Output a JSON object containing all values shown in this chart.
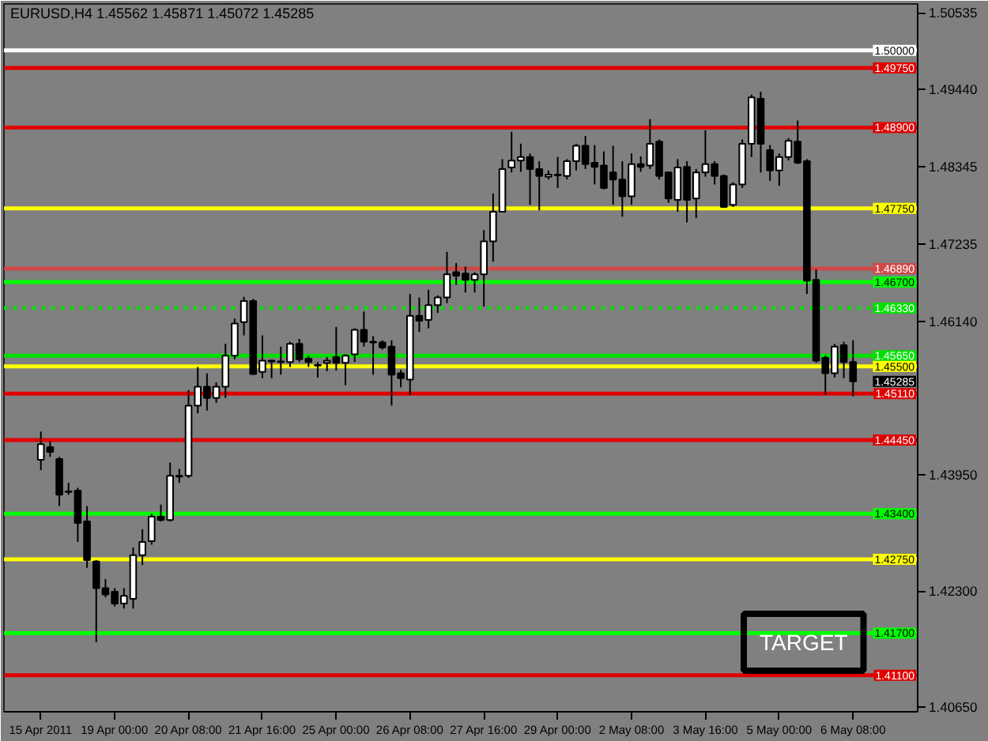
{
  "chart_data": {
    "type": "candlestick",
    "title": "EURUSD,H4 1.45562 1.45871 1.45072 1.45285",
    "categories": [
      "15 Apr 2011",
      null,
      null,
      null,
      null,
      null,
      null,
      null,
      "19 Apr 00:00",
      null,
      null,
      null,
      null,
      null,
      null,
      null,
      "20 Apr 08:00",
      null,
      null,
      null,
      null,
      null,
      null,
      null,
      "21 Apr 16:00",
      null,
      null,
      null,
      null,
      null,
      null,
      null,
      "25 Apr 00:00",
      null,
      null,
      null,
      null,
      null,
      null,
      null,
      "26 Apr 08:00",
      null,
      null,
      null,
      null,
      null,
      null,
      null,
      "27 Apr 16:00",
      null,
      null,
      null,
      null,
      null,
      null,
      null,
      "29 Apr 00:00",
      null,
      null,
      null,
      null,
      null,
      null,
      null,
      "2 May 08:00",
      null,
      null,
      null,
      null,
      null,
      null,
      null,
      "3 May 16:00",
      null,
      null,
      null,
      null,
      null,
      null,
      null,
      "5 May 00:00",
      null,
      null,
      null,
      null,
      null,
      null,
      null,
      "6 May 08:00"
    ],
    "ohlc": [
      [
        1.4417,
        1.4457,
        1.4402,
        1.4439
      ],
      [
        1.4435,
        1.4443,
        1.4421,
        1.4428
      ],
      [
        1.4418,
        1.4421,
        1.4351,
        1.4367
      ],
      [
        1.4372,
        1.4384,
        1.4367,
        1.4371
      ],
      [
        1.4373,
        1.4377,
        1.43,
        1.4327
      ],
      [
        1.4329,
        1.4351,
        1.4263,
        1.4274
      ],
      [
        1.4272,
        1.4274,
        1.4157,
        1.4234
      ],
      [
        1.4234,
        1.4247,
        1.4221,
        1.4225
      ],
      [
        1.4229,
        1.4234,
        1.4208,
        1.4212
      ],
      [
        1.4212,
        1.4234,
        1.4205,
        1.4223
      ],
      [
        1.4219,
        1.4292,
        1.4205,
        1.4281
      ],
      [
        1.4281,
        1.4318,
        1.4267,
        1.43
      ],
      [
        1.4301,
        1.434,
        1.4296,
        1.4336
      ],
      [
        1.4336,
        1.4353,
        1.4329,
        1.4331
      ],
      [
        1.4331,
        1.4413,
        1.4329,
        1.4394
      ],
      [
        1.4394,
        1.4404,
        1.4384,
        1.4393
      ],
      [
        1.4394,
        1.4516,
        1.4391,
        1.4494
      ],
      [
        1.4494,
        1.4549,
        1.4483,
        1.4521
      ],
      [
        1.4521,
        1.454,
        1.4487,
        1.4505
      ],
      [
        1.4505,
        1.4527,
        1.4498,
        1.4521
      ],
      [
        1.4521,
        1.4582,
        1.4505,
        1.4565
      ],
      [
        1.4565,
        1.4618,
        1.456,
        1.4611
      ],
      [
        1.4613,
        1.4649,
        1.4594,
        1.4643
      ],
      [
        1.4643,
        1.4646,
        1.4538,
        1.4539
      ],
      [
        1.4542,
        1.4594,
        1.4533,
        1.4558
      ],
      [
        1.4558,
        1.4559,
        1.4533,
        1.4557
      ],
      [
        1.4556,
        1.4578,
        1.4538,
        1.4557
      ],
      [
        1.4556,
        1.4585,
        1.4549,
        1.4582
      ],
      [
        1.4582,
        1.4589,
        1.4556,
        1.456
      ],
      [
        1.4561,
        1.4565,
        1.4549,
        1.4556
      ],
      [
        1.4552,
        1.4556,
        1.4534,
        1.4551
      ],
      [
        1.4555,
        1.4563,
        1.4543,
        1.4558
      ],
      [
        1.4563,
        1.4606,
        1.4544,
        1.4555
      ],
      [
        1.4555,
        1.4567,
        1.4523,
        1.4565
      ],
      [
        1.4567,
        1.4604,
        1.4556,
        1.4602
      ],
      [
        1.4602,
        1.4628,
        1.4578,
        1.4585
      ],
      [
        1.4585,
        1.4593,
        1.4538,
        1.4584
      ],
      [
        1.4584,
        1.4587,
        1.4574,
        1.4577
      ],
      [
        1.4578,
        1.4587,
        1.4494,
        1.4538
      ],
      [
        1.454,
        1.4545,
        1.452,
        1.4533
      ],
      [
        1.4531,
        1.4653,
        1.4509,
        1.4622
      ],
      [
        1.4622,
        1.4648,
        1.4599,
        1.4615
      ],
      [
        1.4616,
        1.4659,
        1.4604,
        1.4637
      ],
      [
        1.4637,
        1.4651,
        1.4626,
        1.4648
      ],
      [
        1.4648,
        1.4713,
        1.464,
        1.4681
      ],
      [
        1.4684,
        1.4697,
        1.4666,
        1.4679
      ],
      [
        1.4682,
        1.4692,
        1.4655,
        1.4673
      ],
      [
        1.4673,
        1.4684,
        1.4655,
        1.4681
      ],
      [
        1.4681,
        1.4744,
        1.4635,
        1.4728
      ],
      [
        1.4728,
        1.4796,
        1.4699,
        1.477
      ],
      [
        1.477,
        1.4845,
        1.4769,
        1.4831
      ],
      [
        1.4833,
        1.4884,
        1.4826,
        1.4843
      ],
      [
        1.4843,
        1.4867,
        1.4827,
        1.4848
      ],
      [
        1.4848,
        1.4853,
        1.478,
        1.4831
      ],
      [
        1.4831,
        1.4842,
        1.4772,
        1.4821
      ],
      [
        1.482,
        1.4829,
        1.4816,
        1.4823
      ],
      [
        1.4823,
        1.4848,
        1.4804,
        1.4822
      ],
      [
        1.4821,
        1.4845,
        1.4816,
        1.4842
      ],
      [
        1.4842,
        1.4867,
        1.4829,
        1.4864
      ],
      [
        1.4864,
        1.4878,
        1.4831,
        1.4838
      ],
      [
        1.484,
        1.4865,
        1.4809,
        1.4834
      ],
      [
        1.4836,
        1.4856,
        1.4802,
        1.4804
      ],
      [
        1.4826,
        1.4864,
        1.478,
        1.4816
      ],
      [
        1.4816,
        1.4842,
        1.4763,
        1.4792
      ],
      [
        1.4792,
        1.4853,
        1.478,
        1.4838
      ],
      [
        1.4838,
        1.4849,
        1.4827,
        1.4834
      ],
      [
        1.4836,
        1.4902,
        1.4831,
        1.4867
      ],
      [
        1.487,
        1.4873,
        1.4816,
        1.4821
      ],
      [
        1.4826,
        1.4827,
        1.4783,
        1.4789
      ],
      [
        1.4787,
        1.4845,
        1.477,
        1.4833
      ],
      [
        1.4834,
        1.4842,
        1.4755,
        1.4787
      ],
      [
        1.4789,
        1.4831,
        1.4761,
        1.4826
      ],
      [
        1.4826,
        1.4886,
        1.482,
        1.4838
      ],
      [
        1.4838,
        1.4842,
        1.4809,
        1.4821
      ],
      [
        1.4821,
        1.4823,
        1.4776,
        1.4777
      ],
      [
        1.478,
        1.4812,
        1.4777,
        1.4809
      ],
      [
        1.4809,
        1.4873,
        1.4804,
        1.4867
      ],
      [
        1.4867,
        1.4937,
        1.4848,
        1.4933
      ],
      [
        1.4931,
        1.4941,
        1.4826,
        1.4867
      ],
      [
        1.4858,
        1.4865,
        1.4814,
        1.4829
      ],
      [
        1.4829,
        1.4853,
        1.4807,
        1.4848
      ],
      [
        1.4848,
        1.4875,
        1.4843,
        1.4871
      ],
      [
        1.487,
        1.49,
        1.4838,
        1.484
      ],
      [
        1.4842,
        1.4845,
        1.4653,
        1.4672
      ],
      [
        1.4673,
        1.4688,
        1.4555,
        1.4558
      ],
      [
        1.4562,
        1.4565,
        1.451,
        1.454
      ],
      [
        1.454,
        1.4582,
        1.4534,
        1.4578
      ],
      [
        1.458,
        1.4585,
        1.4533,
        1.4556
      ],
      [
        1.45562,
        1.45871,
        1.45072,
        1.45285
      ]
    ],
    "ylim": [
      1.4058,
      1.5066
    ],
    "yticks": [
      {
        "value": 1.50535,
        "label": "1.50535"
      },
      {
        "value": 1.4944,
        "label": "1.49440"
      },
      {
        "value": 1.48345,
        "label": "1.48345"
      },
      {
        "value": 1.47235,
        "label": "1.47235"
      },
      {
        "value": 1.4614,
        "label": "1.46140"
      },
      {
        "value": 1.4395,
        "label": "1.43950"
      },
      {
        "value": 1.423,
        "label": "1.42300"
      },
      {
        "value": 1.4065,
        "label": "1.40650"
      }
    ],
    "ref_lines": [
      {
        "axis": "y",
        "value": 1.5,
        "label": "1.50000",
        "color": "#ffffff"
      },
      {
        "axis": "y",
        "value": 1.4975,
        "label": "1.49750",
        "color": "#e00000"
      },
      {
        "axis": "y",
        "value": 1.489,
        "label": "1.48900",
        "color": "#e00000"
      },
      {
        "axis": "y",
        "value": 1.4775,
        "label": "1.47750",
        "color": "#ffff00"
      },
      {
        "axis": "y",
        "value": 1.4689,
        "label": "1.46890",
        "color": "#d04848"
      },
      {
        "axis": "y",
        "value": 1.467,
        "label": "1.46700",
        "color": "#00ff00"
      },
      {
        "axis": "y",
        "value": 1.4633,
        "label": "1.46330",
        "color": "#00e000",
        "line_style": "dotted"
      },
      {
        "axis": "y",
        "value": 1.4565,
        "label": "1.45650",
        "color": "#00e000"
      },
      {
        "axis": "y",
        "value": 1.455,
        "label": "1.45500",
        "color": "#ffff00"
      },
      {
        "axis": "y",
        "value": 1.4511,
        "label": "1.45110",
        "color": "#e00000"
      },
      {
        "axis": "y",
        "value": 1.4445,
        "label": "1.44450",
        "color": "#e00000"
      },
      {
        "axis": "y",
        "value": 1.434,
        "label": "1.43400",
        "color": "#00ff00"
      },
      {
        "axis": "y",
        "value": 1.4275,
        "label": "1.42750",
        "color": "#ffff00"
      },
      {
        "axis": "y",
        "value": 1.417,
        "label": "1.41700",
        "color": "#00ff00"
      },
      {
        "axis": "y",
        "value": 1.411,
        "label": "1.41100",
        "color": "#e00000"
      }
    ],
    "annotations": [
      "TARGET",
      "1.45285"
    ]
  }
}
